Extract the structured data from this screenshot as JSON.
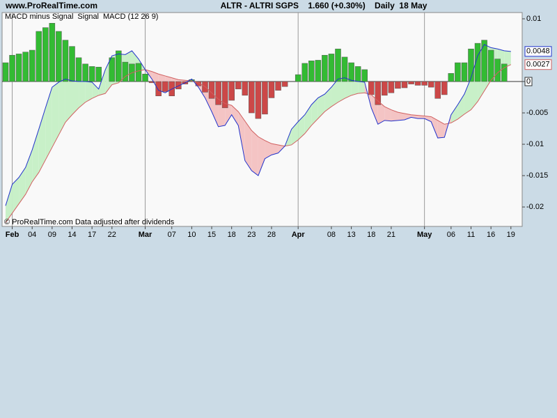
{
  "site": "www.ProRealTime.com",
  "chart_data": {
    "type": "macd",
    "title": "ALTR - ALTRI SGPS    1.660 (+0.30%)    Daily  18 May",
    "footnote": "© ProRealTime.com  Data adjusted after dividends",
    "categories": [
      null,
      "Feb",
      null,
      null,
      "04",
      null,
      null,
      "09",
      null,
      null,
      "14",
      null,
      null,
      "17",
      null,
      null,
      "22",
      null,
      null,
      null,
      null,
      "Mar",
      null,
      null,
      null,
      "07",
      null,
      null,
      "10",
      null,
      null,
      "15",
      null,
      null,
      "18",
      null,
      null,
      "23",
      null,
      null,
      "28",
      null,
      null,
      null,
      "Apr",
      null,
      null,
      null,
      null,
      "08",
      null,
      null,
      "13",
      null,
      null,
      "18",
      null,
      null,
      "21",
      null,
      null,
      null,
      null,
      "May",
      null,
      null,
      null,
      "06",
      null,
      null,
      "11",
      null,
      null,
      "16",
      null,
      null,
      "19"
    ],
    "series": [
      {
        "name": "MACD minus Signal",
        "kind": "histogram",
        "color": "#33bb33",
        "negative_color": "#cc4848",
        "values": [
          0.003,
          0.0042,
          0.0044,
          0.0047,
          0.005,
          0.008,
          0.0086,
          0.0093,
          0.008,
          0.0066,
          0.0056,
          0.0038,
          0.0028,
          0.0024,
          0.0023,
          0,
          0.0038,
          0.0049,
          0.0031,
          0.0028,
          0.0029,
          0.0012,
          -0.0002,
          -0.0023,
          -0.0016,
          -0.0023,
          -0.0012,
          -0.0004,
          0.0003,
          -0.0007,
          -0.0017,
          -0.0027,
          -0.0037,
          -0.0042,
          -0.003,
          -0.0012,
          -0.0022,
          -0.005,
          -0.0059,
          -0.0052,
          -0.0026,
          -0.0014,
          -0.0008,
          0,
          0.0011,
          0.0029,
          0.0033,
          0.0034,
          0.0042,
          0.0044,
          0.0052,
          0.0039,
          0.003,
          0.0024,
          0.0019,
          -0.0021,
          -0.0037,
          -0.0022,
          -0.0018,
          -0.0011,
          -0.001,
          -0.0004,
          -0.0006,
          -0.0006,
          -0.0009,
          -0.0027,
          -0.0021,
          0.0013,
          0.003,
          0.003,
          0.0052,
          0.0061,
          0.0066,
          0.005,
          0.0036,
          0.0028,
          null
        ]
      },
      {
        "name": "Signal",
        "kind": "line",
        "color": "#d06060",
        "last_value": 0.0027,
        "values": [
          -0.0225,
          -0.021,
          -0.0195,
          -0.018,
          -0.016,
          -0.0145,
          -0.0125,
          -0.0105,
          -0.0085,
          -0.0065,
          -0.0053,
          -0.0042,
          -0.0033,
          -0.0027,
          -0.0022,
          -0.0019,
          -0.0005,
          -0.0002,
          0.0008,
          0.0014,
          0.0017,
          0.0019,
          0.0016,
          0.0012,
          0.0009,
          0.0006,
          0.0003,
          0.0002,
          0.0001,
          -0.0002,
          -0.0008,
          -0.0018,
          -0.0028,
          -0.0035,
          -0.0038,
          -0.0048,
          -0.0063,
          -0.0078,
          -0.0088,
          -0.0094,
          -0.0099,
          -0.0101,
          -0.0103,
          -0.0101,
          -0.0093,
          -0.0083,
          -0.007,
          -0.0059,
          -0.0048,
          -0.004,
          -0.0033,
          -0.0027,
          -0.0022,
          -0.0019,
          -0.0018,
          -0.0021,
          -0.0031,
          -0.004,
          -0.0045,
          -0.0049,
          -0.0051,
          -0.0053,
          -0.0054,
          -0.0055,
          -0.0056,
          -0.0062,
          -0.0068,
          -0.0066,
          -0.006,
          -0.0052,
          -0.0045,
          -0.0032,
          -0.0015,
          0.0002,
          0.0014,
          0.0022,
          0.0027
        ]
      },
      {
        "name": "MACD (12 26 9)",
        "kind": "line",
        "color": "#2233cc",
        "last_value": 0.0048,
        "values": [
          -0.0198,
          -0.0164,
          -0.0153,
          -0.0137,
          -0.0109,
          -0.0076,
          -0.0042,
          -0.0009,
          -0.0001,
          0.0004,
          0.0001,
          0,
          0,
          -0.0001,
          -0.0012,
          0.0019,
          0.0041,
          0.0044,
          0.0043,
          0.0049,
          0.0036,
          0.0019,
          0.0004,
          -0.0014,
          -0.0018,
          -0.0012,
          -0.0007,
          -0.0002,
          0.0004,
          -0.0009,
          -0.0026,
          -0.0048,
          -0.0072,
          -0.007,
          -0.0053,
          -0.007,
          -0.0126,
          -0.0142,
          -0.015,
          -0.0123,
          -0.0117,
          -0.0114,
          -0.0103,
          -0.0076,
          -0.0064,
          -0.0053,
          -0.0037,
          -0.0026,
          -0.002,
          -0.0009,
          0.0004,
          0.0006,
          0.0002,
          0,
          -0.0001,
          -0.0042,
          -0.0068,
          -0.0062,
          -0.0063,
          -0.0062,
          -0.0061,
          -0.0057,
          -0.0059,
          -0.0059,
          -0.0064,
          -0.009,
          -0.0089,
          -0.0053,
          -0.0037,
          -0.002,
          0.0006,
          0.0041,
          0.0059,
          0.0054,
          0.0052,
          0.0049,
          0.0048
        ]
      }
    ],
    "fill_above": "#c8f0c8",
    "fill_below": "#f4c4c4",
    "ylim": [
      -0.0231,
      0.011
    ],
    "yticks": [
      0.01,
      0,
      -0.005,
      -0.01,
      -0.015,
      -0.02
    ]
  }
}
